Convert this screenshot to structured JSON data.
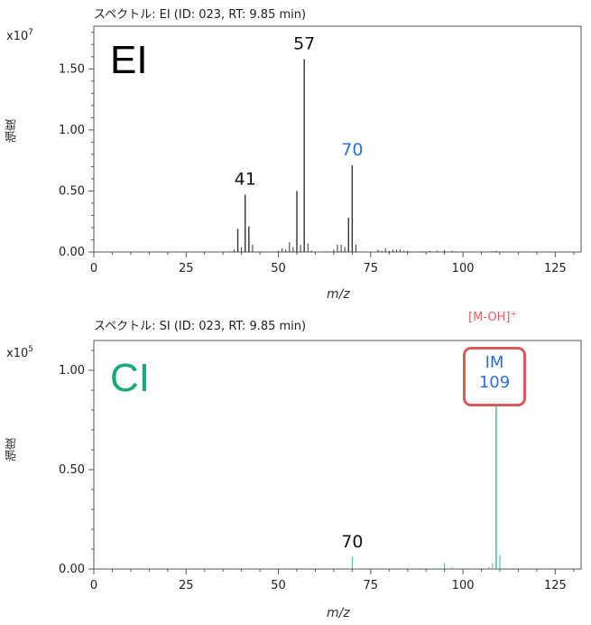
{
  "chart_data": [
    {
      "type": "bar",
      "title": "スペクトル: EI (ID: 023, RT: 9.85 min)",
      "panel_label": "EI",
      "scale_base": "x10",
      "scale_exp": "7",
      "ylabel": "強度",
      "xlabel": "m/z",
      "xlim": [
        0,
        132
      ],
      "ylim": [
        0,
        1.85
      ],
      "x_ticks": [
        0,
        25,
        50,
        75,
        100,
        125
      ],
      "y_ticks": [
        0.0,
        0.5,
        1.0,
        1.5
      ],
      "y_tick_labels": [
        "0.00",
        "0.50",
        "1.00",
        "1.50"
      ],
      "grid": false,
      "peaks": [
        {
          "mz": 37,
          "intensity": 0.005
        },
        {
          "mz": 38,
          "intensity": 0.02
        },
        {
          "mz": 39,
          "intensity": 0.19
        },
        {
          "mz": 40,
          "intensity": 0.04
        },
        {
          "mz": 41,
          "intensity": 0.47
        },
        {
          "mz": 42,
          "intensity": 0.21
        },
        {
          "mz": 43,
          "intensity": 0.06
        },
        {
          "mz": 50,
          "intensity": 0.01
        },
        {
          "mz": 51,
          "intensity": 0.03
        },
        {
          "mz": 52,
          "intensity": 0.02
        },
        {
          "mz": 53,
          "intensity": 0.08
        },
        {
          "mz": 54,
          "intensity": 0.04
        },
        {
          "mz": 55,
          "intensity": 0.5
        },
        {
          "mz": 56,
          "intensity": 0.06
        },
        {
          "mz": 57,
          "intensity": 1.58
        },
        {
          "mz": 58,
          "intensity": 0.07
        },
        {
          "mz": 59,
          "intensity": 0.01
        },
        {
          "mz": 63,
          "intensity": 0.005
        },
        {
          "mz": 65,
          "intensity": 0.02
        },
        {
          "mz": 66,
          "intensity": 0.06
        },
        {
          "mz": 67,
          "intensity": 0.06
        },
        {
          "mz": 68,
          "intensity": 0.04
        },
        {
          "mz": 69,
          "intensity": 0.28
        },
        {
          "mz": 70,
          "intensity": 0.71
        },
        {
          "mz": 71,
          "intensity": 0.06
        },
        {
          "mz": 77,
          "intensity": 0.02
        },
        {
          "mz": 78,
          "intensity": 0.01
        },
        {
          "mz": 79,
          "intensity": 0.03
        },
        {
          "mz": 80,
          "intensity": 0.01
        },
        {
          "mz": 81,
          "intensity": 0.02
        },
        {
          "mz": 82,
          "intensity": 0.02
        },
        {
          "mz": 83,
          "intensity": 0.02
        },
        {
          "mz": 84,
          "intensity": 0.01
        },
        {
          "mz": 85,
          "intensity": 0.01
        },
        {
          "mz": 91,
          "intensity": 0.01
        },
        {
          "mz": 93,
          "intensity": 0.01
        },
        {
          "mz": 95,
          "intensity": 0.015
        },
        {
          "mz": 97,
          "intensity": 0.01
        },
        {
          "mz": 98,
          "intensity": 0.005
        },
        {
          "mz": 108,
          "intensity": 0.005
        },
        {
          "mz": 109,
          "intensity": 0.01
        },
        {
          "mz": 111,
          "intensity": 0.005
        }
      ],
      "peak_color": "#333333",
      "annotations": [
        {
          "label": "41",
          "mz": 41,
          "color": "#111111"
        },
        {
          "label": "57",
          "mz": 57,
          "color": "#111111"
        },
        {
          "label": "70",
          "mz": 70,
          "color": "#2e6fd8"
        }
      ],
      "label_color": "#000000"
    },
    {
      "type": "bar",
      "title": "スペクトル: SI (ID: 023, RT: 9.85 min)",
      "panel_label": "CI",
      "scale_base": "x10",
      "scale_exp": "5",
      "ylabel": "強度",
      "xlabel": "m/z",
      "xlim": [
        0,
        132
      ],
      "ylim": [
        0,
        1.15
      ],
      "x_ticks": [
        0,
        25,
        50,
        75,
        100,
        125
      ],
      "y_ticks": [
        0.0,
        0.5,
        1.0
      ],
      "y_tick_labels": [
        "0.00",
        "0.50",
        "1.00"
      ],
      "grid": false,
      "peaks": [
        {
          "mz": 70,
          "intensity": 0.06
        },
        {
          "mz": 95,
          "intensity": 0.03
        },
        {
          "mz": 97,
          "intensity": 0.01
        },
        {
          "mz": 107,
          "intensity": 0.01
        },
        {
          "mz": 108,
          "intensity": 0.03
        },
        {
          "mz": 109,
          "intensity": 0.82
        },
        {
          "mz": 110,
          "intensity": 0.07
        }
      ],
      "peak_color": "#3dba8c",
      "annotations": [
        {
          "label": "70",
          "mz": 70,
          "color": "#111111"
        }
      ],
      "label_color": "#1aa876",
      "ion_label": "[M-OH]",
      "ion_charge": "+",
      "ion_label_color": "#e06060",
      "boxed_peak": {
        "line1": "IM",
        "line2": "109",
        "mz": 109
      }
    }
  ]
}
